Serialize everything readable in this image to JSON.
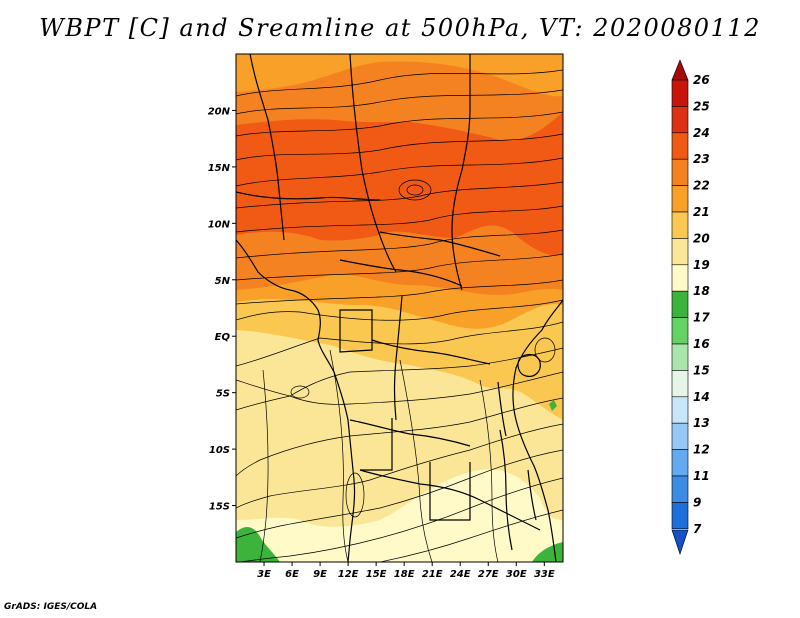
{
  "title": "WBPT [C] and Sreamline at 500hPa, VT: 2020080112",
  "footer": "GrADS: IGES/COLA",
  "map": {
    "lon_min": 0,
    "lon_max": 35,
    "lat_min": -20,
    "lat_max": 25,
    "lon_labels": [
      {
        "lon": 3,
        "text": "3E"
      },
      {
        "lon": 6,
        "text": "6E"
      },
      {
        "lon": 9,
        "text": "9E"
      },
      {
        "lon": 12,
        "text": "12E"
      },
      {
        "lon": 15,
        "text": "15E"
      },
      {
        "lon": 18,
        "text": "18E"
      },
      {
        "lon": 21,
        "text": "21E"
      },
      {
        "lon": 24,
        "text": "24E"
      },
      {
        "lon": 27,
        "text": "27E"
      },
      {
        "lon": 30,
        "text": "30E"
      },
      {
        "lon": 33,
        "text": "33E"
      }
    ],
    "lat_labels": [
      {
        "lat": 20,
        "text": "20N"
      },
      {
        "lat": 15,
        "text": "15N"
      },
      {
        "lat": 10,
        "text": "10N"
      },
      {
        "lat": 5,
        "text": "5N"
      },
      {
        "lat": 0,
        "text": "EQ"
      },
      {
        "lat": -5,
        "text": "5S"
      },
      {
        "lat": -10,
        "text": "10S"
      },
      {
        "lat": -15,
        "text": "15S"
      }
    ]
  },
  "colorbar": {
    "labels": [
      "26",
      "25",
      "24",
      "23",
      "22",
      "21",
      "20",
      "19",
      "18",
      "17",
      "16",
      "15",
      "14",
      "13",
      "12",
      "11",
      "9",
      "7"
    ],
    "colors": [
      "#a50a0a",
      "#c8140a",
      "#dc3214",
      "#f05a14",
      "#f58220",
      "#f8a028",
      "#fac850",
      "#fae696",
      "#fffac8",
      "#3cb43c",
      "#64d264",
      "#aae6aa",
      "#e6f5e6",
      "#c8e6fa",
      "#96c8f5",
      "#64aaf0",
      "#3c8ce6",
      "#1e6edc",
      "#1450c8"
    ]
  },
  "colors": {
    "wbpt_17": "#3cb43c",
    "wbpt_18": "#fffac8",
    "wbpt_19": "#fae696",
    "wbpt_20": "#fac850",
    "wbpt_21": "#f8a028",
    "wbpt_22": "#f58220",
    "wbpt_23": "#f05a14",
    "streamline": "#000000",
    "border": "#000000"
  }
}
